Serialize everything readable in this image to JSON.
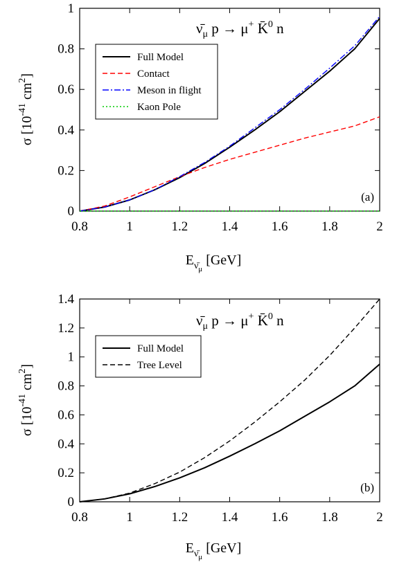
{
  "chart_data": [
    {
      "type": "line",
      "panel_label": "(a)",
      "title": "ν̄μ p → μ+ K̄0 n",
      "title_parts": {
        "nu": "ν̄",
        "nu_sub": "μ",
        "p": "p",
        "arrow": "→",
        "mu": "μ",
        "mu_sup": "+",
        "kbar": "K̄",
        "k_sup": "0",
        "n": "n"
      },
      "ylabel": {
        "sigma": "σ",
        "open": "[10",
        "exp": "-41",
        "unit": " cm",
        "unit_exp": "2",
        "close": "]"
      },
      "xlabel": {
        "E": "E",
        "sub": "ν̄",
        "subsub": "μ",
        "unit": "[GeV]"
      },
      "xlim": [
        0.8,
        2.0
      ],
      "ylim": [
        0,
        1.0
      ],
      "xticks": [
        "0.8",
        "1",
        "1.2",
        "1.4",
        "1.6",
        "1.8",
        "2"
      ],
      "yticks": [
        "0",
        "0.2",
        "0.4",
        "0.6",
        "0.8",
        "1"
      ],
      "legend_position": "top-left",
      "series": [
        {
          "name": "Full Model",
          "color": "#000000",
          "dash": "solid",
          "x": [
            0.8,
            0.9,
            1.0,
            1.1,
            1.2,
            1.3,
            1.4,
            1.5,
            1.6,
            1.7,
            1.8,
            1.9,
            2.0
          ],
          "y": [
            0.0,
            0.02,
            0.055,
            0.105,
            0.165,
            0.235,
            0.315,
            0.4,
            0.49,
            0.59,
            0.69,
            0.8,
            0.95
          ]
        },
        {
          "name": "Contact",
          "color": "#ff0000",
          "dash": "dashed",
          "x": [
            0.8,
            0.9,
            1.0,
            1.1,
            1.2,
            1.3,
            1.4,
            1.5,
            1.6,
            1.7,
            1.8,
            1.9,
            2.0
          ],
          "y": [
            0.0,
            0.025,
            0.07,
            0.12,
            0.17,
            0.215,
            0.255,
            0.29,
            0.325,
            0.36,
            0.39,
            0.42,
            0.465
          ]
        },
        {
          "name": "Meson in flight",
          "color": "#0000ff",
          "dash": "dashdot",
          "x": [
            0.8,
            0.9,
            1.0,
            1.1,
            1.2,
            1.3,
            1.4,
            1.5,
            1.6,
            1.7,
            1.8,
            1.9,
            2.0
          ],
          "y": [
            0.0,
            0.02,
            0.055,
            0.105,
            0.17,
            0.24,
            0.32,
            0.41,
            0.5,
            0.6,
            0.705,
            0.815,
            0.96
          ]
        },
        {
          "name": "Kaon Pole",
          "color": "#00cc00",
          "dash": "dotted",
          "x": [
            0.8,
            1.0,
            1.2,
            1.4,
            1.6,
            1.8,
            2.0
          ],
          "y": [
            0.0,
            0.0,
            0.0,
            0.0,
            0.0,
            0.0,
            0.0
          ]
        }
      ]
    },
    {
      "type": "line",
      "panel_label": "(b)",
      "title": "ν̄μ p → μ+ K̄0 n",
      "title_parts": {
        "nu": "ν̄",
        "nu_sub": "μ",
        "p": "p",
        "arrow": "→",
        "mu": "μ",
        "mu_sup": "+",
        "kbar": "K̄",
        "k_sup": "0",
        "n": "n"
      },
      "ylabel": {
        "sigma": "σ",
        "open": "[10",
        "exp": "-41",
        "unit": " cm",
        "unit_exp": "2",
        "close": "]"
      },
      "xlabel": {
        "E": "E",
        "sub": "ν̄",
        "subsub": "μ",
        "unit": "[GeV]"
      },
      "xlim": [
        0.8,
        2.0
      ],
      "ylim": [
        0,
        1.4
      ],
      "xticks": [
        "0.8",
        "1",
        "1.2",
        "1.4",
        "1.6",
        "1.8",
        "2"
      ],
      "yticks": [
        "0",
        "0.2",
        "0.4",
        "0.6",
        "0.8",
        "1",
        "1.2",
        "1.4"
      ],
      "legend_position": "top-left",
      "series": [
        {
          "name": "Full Model",
          "color": "#000000",
          "dash": "solid",
          "x": [
            0.8,
            0.9,
            1.0,
            1.1,
            1.2,
            1.3,
            1.4,
            1.5,
            1.6,
            1.7,
            1.8,
            1.9,
            2.0
          ],
          "y": [
            0.0,
            0.02,
            0.055,
            0.105,
            0.165,
            0.235,
            0.315,
            0.4,
            0.49,
            0.59,
            0.69,
            0.8,
            0.95
          ]
        },
        {
          "name": "Tree Level",
          "color": "#000000",
          "dash": "dashed",
          "x": [
            0.8,
            0.9,
            1.0,
            1.1,
            1.2,
            1.3,
            1.4,
            1.5,
            1.6,
            1.7,
            1.8,
            1.9,
            2.0
          ],
          "y": [
            0.0,
            0.02,
            0.06,
            0.125,
            0.205,
            0.305,
            0.42,
            0.55,
            0.69,
            0.84,
            1.01,
            1.2,
            1.4
          ]
        }
      ]
    }
  ]
}
